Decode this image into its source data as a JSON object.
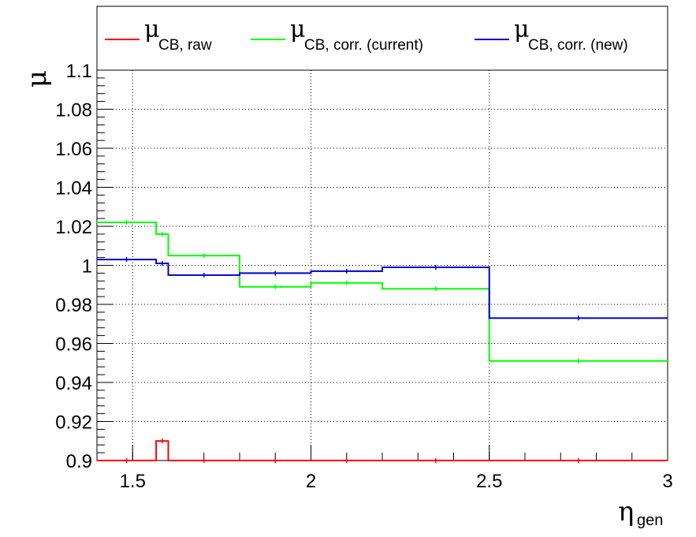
{
  "chart_data": {
    "type": "line",
    "xlabel": {
      "symbol": "η",
      "subscript": "gen"
    },
    "ylabel": {
      "symbol": "μ",
      "subscript": ""
    },
    "xlim": [
      1.4,
      3.0
    ],
    "ylim": [
      0.9,
      1.1
    ],
    "x_ticks": [
      1.5,
      2,
      2.5,
      3
    ],
    "x_tick_labels": [
      "1.5",
      "2",
      "2.5",
      "3"
    ],
    "y_ticks": [
      0.9,
      0.92,
      0.94,
      0.96,
      0.98,
      1.0,
      1.02,
      1.04,
      1.06,
      1.08,
      1.1
    ],
    "y_tick_labels": [
      "0.9",
      "0.92",
      "0.94",
      "0.96",
      "0.98",
      "1",
      "1.02",
      "1.04",
      "1.06",
      "1.08",
      "1.1"
    ],
    "grid": true,
    "legend_position": "top",
    "bin_edges": [
      1.4,
      1.566,
      1.6,
      1.8,
      2.0,
      2.2,
      2.5,
      3.0
    ],
    "series": [
      {
        "name_symbol": "μ",
        "name_subscript": "CB, raw",
        "color": "#ff0000",
        "values": [
          0.9,
          0.91,
          0.9,
          0.9,
          0.9,
          0.9,
          0.9
        ]
      },
      {
        "name_symbol": "μ",
        "name_subscript": "CB, corr. (current)",
        "color": "#00ff00",
        "values": [
          1.022,
          1.016,
          1.005,
          0.989,
          0.991,
          0.988,
          0.951
        ]
      },
      {
        "name_symbol": "μ",
        "name_subscript": "CB, corr. (new)",
        "color": "#0000cc",
        "values": [
          1.003,
          1.001,
          0.995,
          0.996,
          0.997,
          0.999,
          0.973
        ]
      }
    ]
  }
}
